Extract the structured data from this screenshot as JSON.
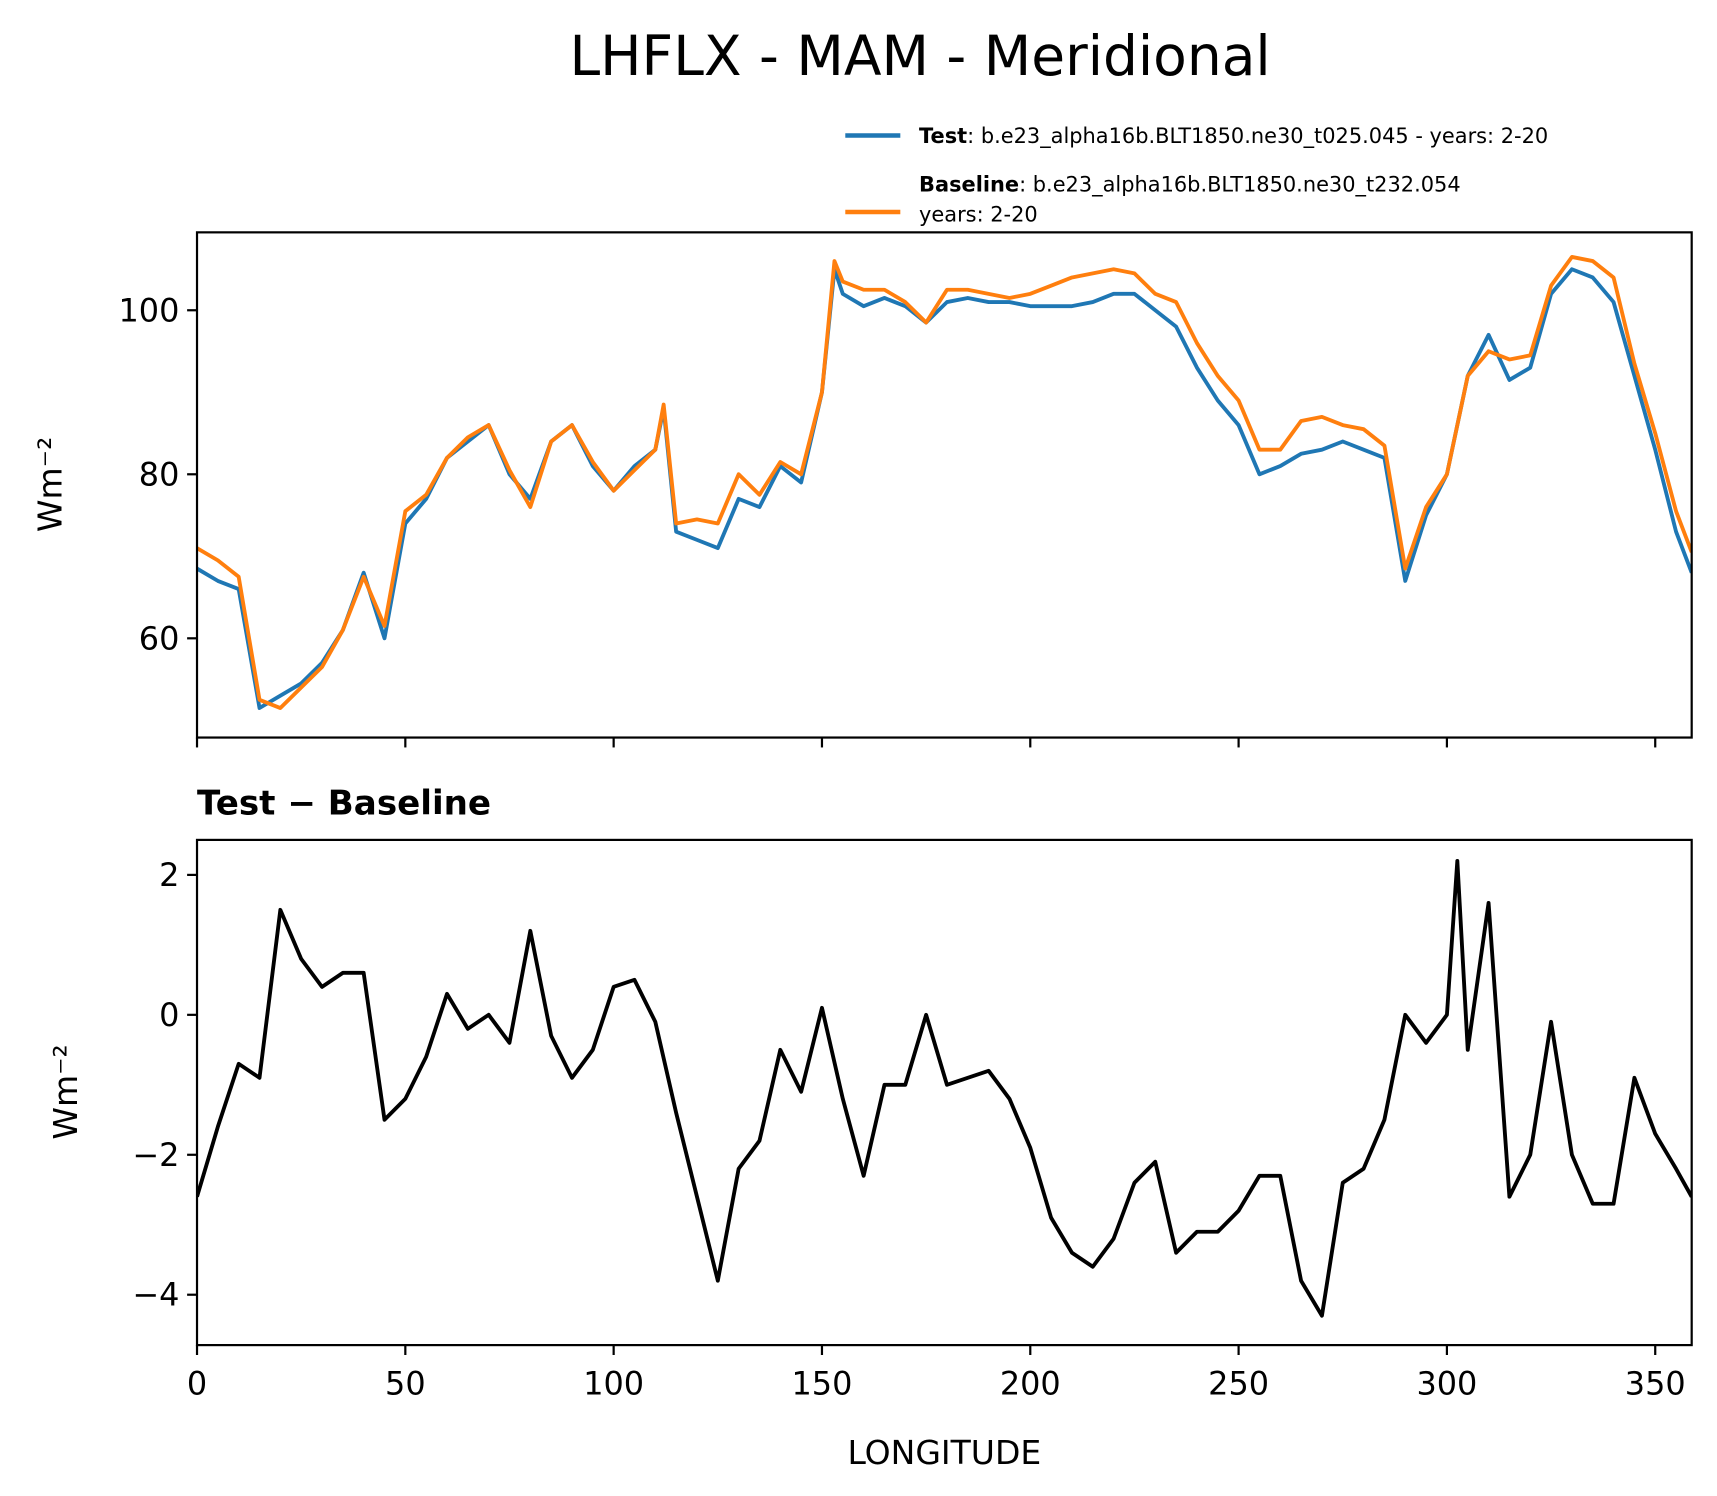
{
  "chart_data": [
    {
      "type": "line",
      "title": "LHFLX - MAM - Meridional",
      "ylabel": "Wm⁻²",
      "x": [
        0,
        5,
        10,
        15,
        20,
        25,
        30,
        35,
        40,
        45,
        50,
        55,
        60,
        65,
        70,
        75,
        80,
        85,
        90,
        95,
        100,
        105,
        110,
        112,
        115,
        120,
        125,
        130,
        135,
        140,
        145,
        150,
        153,
        155,
        160,
        165,
        170,
        175,
        180,
        185,
        190,
        195,
        200,
        205,
        210,
        215,
        220,
        225,
        230,
        235,
        240,
        245,
        250,
        255,
        260,
        265,
        270,
        275,
        280,
        285,
        290,
        295,
        300,
        305,
        310,
        315,
        320,
        325,
        330,
        335,
        340,
        345,
        350,
        355,
        358.75
      ],
      "series": [
        {
          "name": "Test",
          "description": [
            ": b.e23_alpha16b.BLT1850.ne30_t025.045 - years: 2-20"
          ],
          "color": "#1f77b4",
          "values": [
            68.5,
            67,
            66,
            51.5,
            53,
            54.5,
            57,
            61,
            68,
            60,
            74,
            77,
            82,
            84,
            86,
            80,
            77,
            84,
            86,
            81,
            78,
            81,
            83,
            88,
            73,
            72,
            71,
            77,
            76,
            81,
            79,
            90,
            105,
            102,
            100.5,
            101.5,
            100.5,
            98.5,
            101,
            101.5,
            101,
            101,
            100.5,
            100.5,
            100.5,
            101,
            102,
            102,
            100,
            98,
            93,
            89,
            86,
            80,
            81,
            82.5,
            83,
            84,
            83,
            82,
            67,
            75,
            80,
            92,
            97,
            91.5,
            93,
            102,
            105,
            104,
            101,
            92,
            83,
            73,
            68
          ]
        },
        {
          "name": "Baseline",
          "description": [
            ": b.e23_alpha16b.BLT1850.ne30_t232.054",
            "years: 2-20"
          ],
          "color": "#ff7f0e",
          "values": [
            71,
            69.5,
            67.5,
            52.5,
            51.5,
            54,
            56.5,
            61,
            67.5,
            61.5,
            75.5,
            77.5,
            82,
            84.5,
            86,
            80.5,
            76,
            84,
            86,
            81.5,
            78,
            80.5,
            83,
            88.5,
            74,
            74.5,
            74,
            80,
            77.5,
            81.5,
            80,
            90,
            106,
            103.5,
            102.5,
            102.5,
            101,
            98.5,
            102.5,
            102.5,
            102,
            101.5,
            102,
            103,
            104,
            104.5,
            105,
            104.5,
            102,
            101,
            96,
            92,
            89,
            83,
            83,
            86.5,
            87,
            86,
            85.5,
            83.5,
            68.5,
            76,
            80,
            92,
            95,
            94,
            94.5,
            103,
            106.5,
            106,
            104,
            93.5,
            85,
            75.5,
            70.5
          ]
        }
      ],
      "xlim": [
        0,
        358.75
      ],
      "xticks": [
        0,
        50,
        100,
        150,
        200,
        250,
        300,
        350
      ],
      "ylim": [
        47.9,
        109.5
      ],
      "yticks": [
        60,
        80,
        100
      ]
    },
    {
      "type": "line",
      "title": "Test − Baseline",
      "ylabel": "Wm⁻²",
      "xlabel": "LONGITUDE",
      "x": [
        0,
        5,
        10,
        15,
        20,
        25,
        30,
        35,
        40,
        45,
        50,
        55,
        60,
        65,
        70,
        75,
        80,
        85,
        90,
        95,
        100,
        105,
        110,
        115,
        120,
        125,
        130,
        135,
        140,
        145,
        150,
        155,
        160,
        165,
        170,
        175,
        180,
        185,
        190,
        195,
        200,
        205,
        210,
        215,
        220,
        225,
        230,
        235,
        240,
        245,
        250,
        255,
        260,
        265,
        270,
        275,
        280,
        285,
        290,
        295,
        300,
        302.5,
        305,
        310,
        315,
        320,
        325,
        330,
        335,
        340,
        345,
        350,
        355,
        358.75
      ],
      "series": [
        {
          "color": "#000000",
          "values": [
            -2.6,
            -1.6,
            -0.7,
            -0.9,
            1.5,
            0.8,
            0.4,
            0.6,
            0.6,
            -1.5,
            -1.2,
            -0.6,
            0.3,
            -0.2,
            0,
            -0.4,
            1.2,
            -0.3,
            -0.9,
            -0.5,
            0.4,
            0.5,
            -0.1,
            -1.4,
            -2.6,
            -3.8,
            -2.2,
            -1.8,
            -0.5,
            -1.1,
            0.1,
            -1.2,
            -2.3,
            -1,
            -1,
            0,
            -1,
            -0.9,
            -0.8,
            -1.2,
            -1.9,
            -2.9,
            -3.4,
            -3.6,
            -3.2,
            -2.4,
            -2.1,
            -3.4,
            -3.1,
            -3.1,
            -2.8,
            -2.3,
            -2.3,
            -3.8,
            -4.3,
            -2.4,
            -2.2,
            -1.5,
            0,
            -0.4,
            0,
            2.2,
            -0.5,
            1.6,
            -2.6,
            -2,
            -0.1,
            -2,
            -2.7,
            -2.7,
            -0.9,
            -1.7,
            -2.2,
            -2.6
          ]
        }
      ],
      "xlim": [
        0,
        358.75
      ],
      "xticks": [
        0,
        50,
        100,
        150,
        200,
        250,
        300,
        350
      ],
      "ylim": [
        -4.72,
        2.5
      ],
      "yticks": [
        {
          "value": -4,
          "label": "−4"
        },
        {
          "value": -2,
          "label": "−2"
        },
        0,
        2
      ]
    }
  ]
}
